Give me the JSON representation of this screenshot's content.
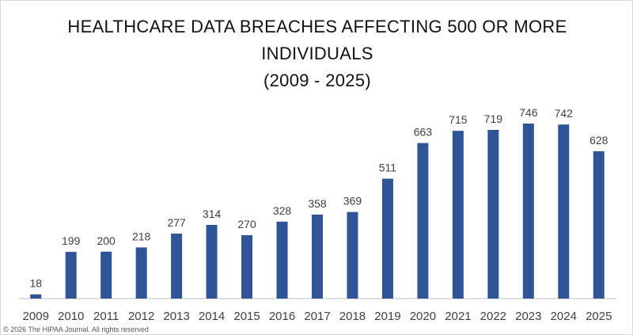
{
  "chart_data": {
    "type": "bar",
    "title": "HEALTHCARE DATA BREACHES AFFECTING 500 OR MORE INDIVIDUALS",
    "subtitle": "(2009 - 2025)",
    "categories": [
      "2009",
      "2010",
      "2011",
      "2012",
      "2013",
      "2014",
      "2015",
      "2016",
      "2017",
      "2018",
      "2019",
      "2020",
      "2021",
      "2022",
      "2023",
      "2024",
      "2025"
    ],
    "values": [
      18,
      199,
      200,
      218,
      277,
      314,
      270,
      328,
      358,
      369,
      511,
      663,
      715,
      719,
      746,
      742,
      628
    ],
    "color": "#2f5597",
    "footer": "© 2026 The HIPAA Journal. All rights reserved"
  }
}
